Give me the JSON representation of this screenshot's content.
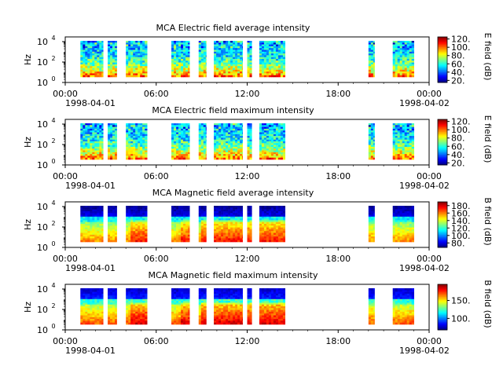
{
  "chart_data": [
    {
      "type": "heatmap",
      "title": "MCA  Electric field average intensity",
      "ylabel": "Hz",
      "colorbar_label": "E field (dB)",
      "colorbar_ticks": [
        "20.",
        "40.",
        "60.",
        "80.",
        "100.",
        "120."
      ],
      "clim": [
        15,
        125
      ],
      "y_ticks": [
        "10^0",
        "10^2",
        "10^4"
      ],
      "x_ticks": [
        "00:00",
        "06:00",
        "12:00",
        "18:00",
        "00:00"
      ],
      "x_start_date": "1998-04-01",
      "x_end_date": "1998-04-02",
      "field": "E",
      "data_blocks_hours": [
        [
          1.0,
          2.5
        ],
        [
          2.8,
          3.4
        ],
        [
          4.0,
          5.4
        ],
        [
          7.0,
          8.2
        ],
        [
          8.8,
          9.3
        ],
        [
          9.8,
          11.7
        ],
        [
          12.0,
          12.3
        ],
        [
          12.8,
          14.5
        ],
        [
          20.0,
          20.4
        ],
        [
          21.6,
          23.0
        ]
      ]
    },
    {
      "type": "heatmap",
      "title": "MCA  Electric field maximum intensity",
      "ylabel": "Hz",
      "colorbar_label": "E field (dB)",
      "colorbar_ticks": [
        "20.",
        "40.",
        "60.",
        "80.",
        "100.",
        "120."
      ],
      "clim": [
        15,
        125
      ],
      "y_ticks": [
        "10^0",
        "10^2",
        "10^4"
      ],
      "x_ticks": [
        "00:00",
        "06:00",
        "12:00",
        "18:00",
        "00:00"
      ],
      "x_start_date": "1998-04-01",
      "x_end_date": "1998-04-02",
      "field": "E",
      "data_blocks_hours": [
        [
          1.0,
          2.5
        ],
        [
          2.8,
          3.4
        ],
        [
          4.0,
          5.4
        ],
        [
          7.0,
          8.2
        ],
        [
          8.8,
          9.3
        ],
        [
          9.8,
          11.7
        ],
        [
          12.0,
          12.3
        ],
        [
          12.8,
          14.5
        ],
        [
          20.0,
          20.4
        ],
        [
          21.6,
          23.0
        ]
      ]
    },
    {
      "type": "heatmap",
      "title": "MCA  Magnetic field average intensity",
      "ylabel": "Hz",
      "colorbar_label": "B field (dB)",
      "colorbar_ticks": [
        "80.",
        "100.",
        "120.",
        "140.",
        "160.",
        "180."
      ],
      "clim": [
        68,
        190
      ],
      "y_ticks": [
        "10^0",
        "10^2",
        "10^4"
      ],
      "x_ticks": [
        "00:00",
        "06:00",
        "12:00",
        "18:00",
        "00:00"
      ],
      "x_start_date": "1998-04-01",
      "x_end_date": "1998-04-02",
      "field": "B",
      "data_blocks_hours": [
        [
          1.0,
          2.5
        ],
        [
          2.8,
          3.4
        ],
        [
          4.0,
          5.4
        ],
        [
          7.0,
          8.2
        ],
        [
          8.8,
          9.3
        ],
        [
          9.8,
          11.7
        ],
        [
          12.0,
          12.3
        ],
        [
          12.8,
          14.5
        ],
        [
          20.0,
          20.4
        ],
        [
          21.6,
          23.0
        ]
      ]
    },
    {
      "type": "heatmap",
      "title": "MCA  Magnetic field maximum intensity",
      "ylabel": "Hz",
      "colorbar_label": "B field (dB)",
      "colorbar_ticks": [
        "100.",
        "150."
      ],
      "clim": [
        68,
        195
      ],
      "y_ticks": [
        "10^0",
        "10^2",
        "10^4"
      ],
      "x_ticks": [
        "00:00",
        "06:00",
        "12:00",
        "18:00",
        "00:00"
      ],
      "x_start_date": "1998-04-01",
      "x_end_date": "1998-04-02",
      "field": "B",
      "data_blocks_hours": [
        [
          1.0,
          2.5
        ],
        [
          2.8,
          3.4
        ],
        [
          4.0,
          5.4
        ],
        [
          7.0,
          8.2
        ],
        [
          8.8,
          9.3
        ],
        [
          9.8,
          11.7
        ],
        [
          12.0,
          12.3
        ],
        [
          12.8,
          14.5
        ],
        [
          20.0,
          20.4
        ],
        [
          21.6,
          23.0
        ]
      ]
    }
  ]
}
